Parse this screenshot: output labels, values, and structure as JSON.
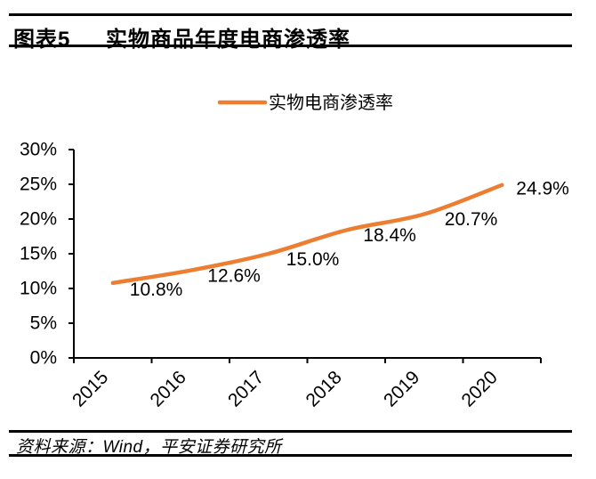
{
  "header": {
    "figure_label": "图表5",
    "title": "实物商品年度电商渗透率"
  },
  "chart_data": {
    "type": "line",
    "title": "实物商品年度电商渗透率",
    "categories": [
      "2015",
      "2016",
      "2017",
      "2018",
      "2019",
      "2020"
    ],
    "series": [
      {
        "name": "实物电商渗透率",
        "values": [
          10.8,
          12.6,
          15.0,
          18.4,
          20.7,
          24.9
        ],
        "labels": [
          "10.8%",
          "12.6%",
          "15.0%",
          "18.4%",
          "20.7%",
          "24.9%"
        ],
        "color": "#ED7D31"
      }
    ],
    "xlabel": "",
    "ylabel": "",
    "ylim": [
      0,
      30
    ],
    "ytick_step": 5,
    "ytick_labels": [
      "0%",
      "5%",
      "10%",
      "15%",
      "20%",
      "25%",
      "30%"
    ],
    "grid": false,
    "legend_position": "top",
    "data_label_position": "below-right"
  },
  "footer": {
    "source": "资料来源：Wind，平安证券研究所"
  },
  "colors": {
    "accent": "#ED7D31",
    "text": "#000000",
    "rule": "#000000",
    "background": "#FFFFFF"
  }
}
